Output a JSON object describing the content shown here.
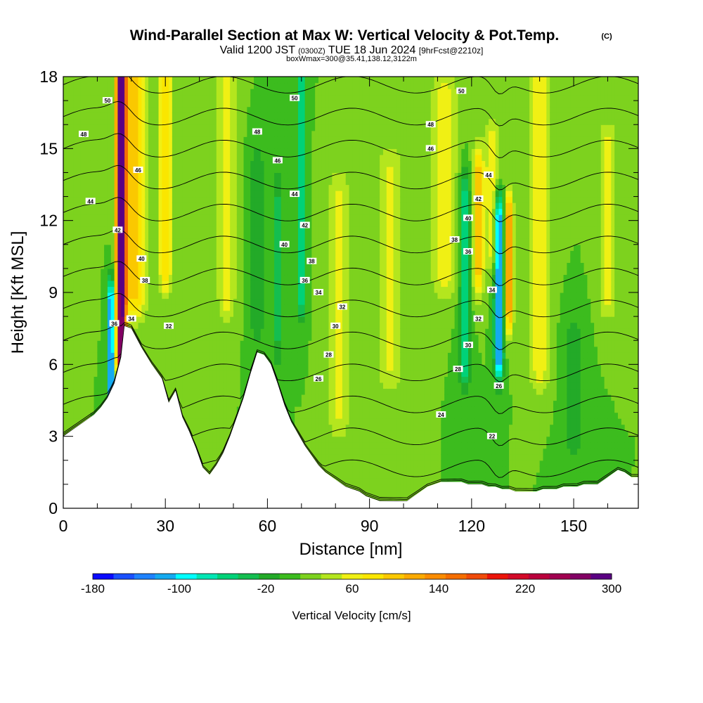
{
  "title": "Wind-Parallel Section at Max W: Vertical Velocity & Pot.Temp.",
  "title_mark": "(C)",
  "subtitle": {
    "valid": "Valid 1200 JST",
    "utc": "(0300Z)",
    "date": "TUE 18 Jun 2024",
    "fcst": "[9hrFcst@2210z]"
  },
  "box_line": "boxWmax=300@35.41,138.12,3122m",
  "chart_data": {
    "type": "heatmap",
    "xlabel": "Distance [nm]",
    "ylabel": "Height [Kft MSL]",
    "xlim": [
      0,
      169
    ],
    "ylim": [
      0,
      18
    ],
    "xticks": [
      0,
      30,
      60,
      90,
      120,
      150
    ],
    "yticks": [
      0,
      3,
      6,
      9,
      12,
      15,
      18
    ],
    "grid": false,
    "background_w": 20,
    "terrain": {
      "x": [
        0,
        3,
        6,
        9,
        11,
        13,
        15,
        17,
        18,
        20,
        23,
        26,
        29,
        31,
        33,
        35,
        37,
        39,
        41,
        43,
        45,
        47,
        49,
        51,
        53,
        55,
        57,
        59,
        61,
        63,
        65,
        67,
        69,
        71,
        73,
        75,
        77,
        79,
        81,
        83,
        85,
        87,
        89,
        91,
        93,
        95,
        97,
        99,
        101,
        103,
        105,
        107,
        109,
        111,
        113,
        115,
        117,
        119,
        121,
        123,
        125,
        127,
        129,
        131,
        133,
        135,
        137,
        139,
        141,
        143,
        145,
        147,
        149,
        151,
        153,
        155,
        157,
        159,
        161,
        163,
        165,
        167,
        169
      ],
      "height": [
        3.0,
        3.3,
        3.6,
        3.9,
        4.2,
        4.6,
        5.2,
        6.3,
        7.6,
        7.5,
        6.7,
        6.0,
        5.4,
        4.4,
        4.9,
        3.8,
        3.2,
        2.5,
        1.7,
        1.4,
        1.8,
        2.3,
        3.0,
        3.8,
        4.6,
        5.6,
        6.5,
        6.4,
        6.0,
        5.2,
        4.3,
        3.6,
        3.1,
        2.6,
        2.2,
        1.8,
        1.5,
        1.3,
        1.1,
        0.9,
        0.8,
        0.7,
        0.5,
        0.4,
        0.3,
        0.3,
        0.3,
        0.3,
        0.3,
        0.5,
        0.7,
        0.9,
        1.0,
        1.1,
        1.1,
        1.1,
        1.1,
        1.0,
        1.0,
        1.0,
        0.9,
        0.9,
        0.8,
        0.8,
        0.7,
        0.7,
        0.7,
        0.7,
        0.8,
        0.8,
        0.8,
        0.9,
        0.9,
        0.9,
        1.0,
        1.0,
        1.0,
        1.2,
        1.4,
        1.6,
        1.5,
        1.3,
        1.3
      ]
    },
    "features": [
      {
        "x": 17,
        "z0": 6.5,
        "z1": 18,
        "sx": 1.4,
        "w": 300
      },
      {
        "x": 14,
        "z0": 4.5,
        "z1": 8.5,
        "sx": 1.0,
        "w": -170
      },
      {
        "x": 21,
        "z0": 9,
        "z1": 18,
        "sx": 3.5,
        "w": 85
      },
      {
        "x": 30,
        "z0": 10,
        "z1": 18,
        "sx": 2.0,
        "w": 75
      },
      {
        "x": 48,
        "z0": 9,
        "z1": 18,
        "sx": 2.5,
        "w": 55
      },
      {
        "x": 57,
        "z0": 8,
        "z1": 14,
        "sx": 2.0,
        "w": -40
      },
      {
        "x": 70,
        "z0": 9,
        "z1": 18,
        "sx": 1.0,
        "w": -90
      },
      {
        "x": 63,
        "z0": 7,
        "z1": 13,
        "sx": 1.5,
        "w": -45
      },
      {
        "x": 81,
        "z0": 4,
        "z1": 13,
        "sx": 3.0,
        "w": 45
      },
      {
        "x": 96,
        "z0": 6,
        "z1": 14,
        "sx": 3.5,
        "w": 45
      },
      {
        "x": 112,
        "z0": 10,
        "z1": 17,
        "sx": 3.5,
        "w": 60
      },
      {
        "x": 118,
        "z0": 6,
        "z1": 13,
        "sx": 1.5,
        "w": -75
      },
      {
        "x": 122,
        "z0": 10,
        "z1": 14,
        "sx": 1.5,
        "w": 95
      },
      {
        "x": 128,
        "z0": 6.5,
        "z1": 12,
        "sx": 1.3,
        "w": -160
      },
      {
        "x": 131,
        "z0": 8.5,
        "z1": 12,
        "sx": 1.2,
        "w": 130
      },
      {
        "x": 126,
        "z0": 11,
        "z1": 15,
        "sx": 2.0,
        "w": 60
      },
      {
        "x": 140,
        "z0": 6,
        "z1": 18,
        "sx": 3.0,
        "w": 55
      },
      {
        "x": 160,
        "z0": 9,
        "z1": 15,
        "sx": 2.5,
        "w": 50
      },
      {
        "x": 150,
        "z0": 3,
        "z1": 7,
        "sx": 3.0,
        "w": -30
      }
    ],
    "theta_levels": [
      24,
      26,
      28,
      30,
      32,
      34,
      36,
      38,
      40,
      42,
      44,
      46,
      48,
      50
    ],
    "theta_labels": [
      {
        "x": 13,
        "z": 17.0,
        "text": "50"
      },
      {
        "x": 6,
        "z": 15.6,
        "text": "48"
      },
      {
        "x": 22,
        "z": 14.1,
        "text": "46"
      },
      {
        "x": 8,
        "z": 12.8,
        "text": "44"
      },
      {
        "x": 16,
        "z": 11.6,
        "text": "42"
      },
      {
        "x": 23,
        "z": 10.4,
        "text": "40"
      },
      {
        "x": 24,
        "z": 9.5,
        "text": "38"
      },
      {
        "x": 15,
        "z": 7.7,
        "text": "36"
      },
      {
        "x": 20,
        "z": 7.9,
        "text": "34"
      },
      {
        "x": 31,
        "z": 7.6,
        "text": "32"
      },
      {
        "x": 68,
        "z": 17.1,
        "text": "50"
      },
      {
        "x": 57,
        "z": 15.7,
        "text": "48"
      },
      {
        "x": 63,
        "z": 14.5,
        "text": "46"
      },
      {
        "x": 68,
        "z": 13.1,
        "text": "44"
      },
      {
        "x": 71,
        "z": 11.8,
        "text": "42"
      },
      {
        "x": 65,
        "z": 11.0,
        "text": "40"
      },
      {
        "x": 73,
        "z": 10.3,
        "text": "38"
      },
      {
        "x": 71,
        "z": 9.5,
        "text": "36"
      },
      {
        "x": 75,
        "z": 9.0,
        "text": "34"
      },
      {
        "x": 82,
        "z": 8.4,
        "text": "32"
      },
      {
        "x": 80,
        "z": 7.6,
        "text": "30"
      },
      {
        "x": 78,
        "z": 6.4,
        "text": "28"
      },
      {
        "x": 75,
        "z": 5.4,
        "text": "26"
      },
      {
        "x": 117,
        "z": 17.4,
        "text": "50"
      },
      {
        "x": 108,
        "z": 16.0,
        "text": "48"
      },
      {
        "x": 108,
        "z": 15.0,
        "text": "46"
      },
      {
        "x": 125,
        "z": 13.9,
        "text": "44"
      },
      {
        "x": 122,
        "z": 12.9,
        "text": "42"
      },
      {
        "x": 119,
        "z": 12.1,
        "text": "40"
      },
      {
        "x": 115,
        "z": 11.2,
        "text": "38"
      },
      {
        "x": 119,
        "z": 10.7,
        "text": "36"
      },
      {
        "x": 126,
        "z": 9.1,
        "text": "34"
      },
      {
        "x": 122,
        "z": 7.9,
        "text": "32"
      },
      {
        "x": 119,
        "z": 6.8,
        "text": "30"
      },
      {
        "x": 116,
        "z": 5.8,
        "text": "28"
      },
      {
        "x": 128,
        "z": 5.1,
        "text": "26"
      },
      {
        "x": 111,
        "z": 3.9,
        "text": "24"
      },
      {
        "x": 126,
        "z": 3.0,
        "text": "22"
      }
    ],
    "colorbar": {
      "label": "Vertical Velocity [cm/s]",
      "levels": [
        -180,
        -160,
        -140,
        -120,
        -100,
        -80,
        -60,
        -40,
        -20,
        0,
        20,
        40,
        60,
        80,
        100,
        120,
        140,
        160,
        180,
        200,
        220,
        240,
        260,
        280,
        300
      ],
      "colors": [
        "#0a0aff",
        "#1a50ff",
        "#1e82ff",
        "#14aaf0",
        "#00ffff",
        "#00e6b4",
        "#00d278",
        "#14be50",
        "#23aa28",
        "#3cbc1e",
        "#7dd21e",
        "#b4e61e",
        "#f0f014",
        "#fae600",
        "#fac800",
        "#faaa00",
        "#fa8c00",
        "#f56e00",
        "#f04b0a",
        "#eb140a",
        "#d20a28",
        "#b9003c",
        "#a00050",
        "#820064",
        "#5a0082"
      ],
      "tick_labels": [
        {
          "value": -180,
          "text": "-180"
        },
        {
          "value": -100,
          "text": "-100"
        },
        {
          "value": -20,
          "text": "-20"
        },
        {
          "value": 60,
          "text": "60"
        },
        {
          "value": 140,
          "text": "140"
        },
        {
          "value": 220,
          "text": "220"
        },
        {
          "value": 300,
          "text": "300"
        }
      ]
    }
  }
}
